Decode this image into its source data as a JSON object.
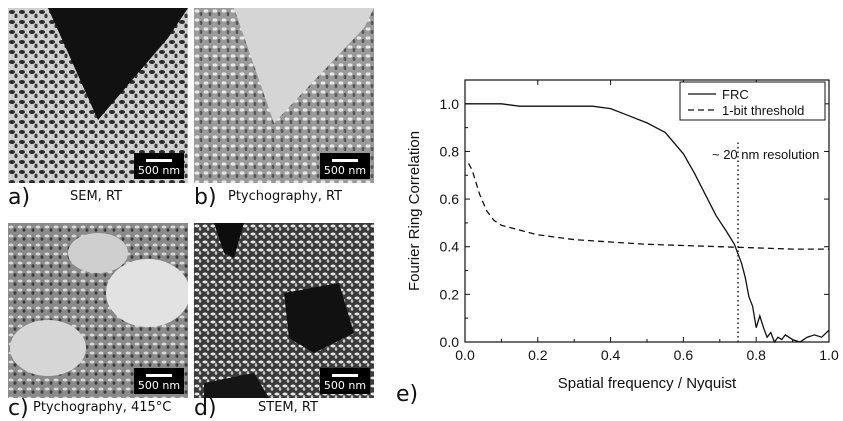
{
  "panels": [
    {
      "letter": "a)",
      "caption": "SEM, RT",
      "scale_bar": "500 nm"
    },
    {
      "letter": "b)",
      "caption": "Ptychography, RT",
      "scale_bar": "500 nm"
    },
    {
      "letter": "c)",
      "caption": "Ptychography, 415°C",
      "scale_bar": "500 nm"
    },
    {
      "letter": "d)",
      "caption": "STEM, RT",
      "scale_bar": "500 nm"
    }
  ],
  "chart_letter": "e)",
  "chart_data": {
    "type": "line",
    "xlabel": "Spatial frequency / Nyquist",
    "ylabel": "Fourier Ring Correlation",
    "xlim": [
      0.0,
      1.0
    ],
    "ylim": [
      0.0,
      1.1
    ],
    "xticks": [
      "0.0",
      "0.2",
      "0.4",
      "0.6",
      "0.8",
      "1.0"
    ],
    "yticks": [
      "0.0",
      "0.2",
      "0.4",
      "0.6",
      "0.8",
      "1.0"
    ],
    "legend_position": "top-right",
    "annotation": "~ 20 nm resolution",
    "annotation_x": 0.75,
    "series": [
      {
        "name": "FRC",
        "style": "solid",
        "x": [
          0.0,
          0.05,
          0.1,
          0.15,
          0.2,
          0.25,
          0.3,
          0.35,
          0.4,
          0.45,
          0.5,
          0.55,
          0.6,
          0.63,
          0.66,
          0.69,
          0.72,
          0.74,
          0.76,
          0.77,
          0.78,
          0.79,
          0.8,
          0.81,
          0.82,
          0.83,
          0.84,
          0.85,
          0.86,
          0.87,
          0.88,
          0.9,
          0.92,
          0.94,
          0.96,
          0.98,
          1.0
        ],
        "y": [
          1.0,
          1.0,
          1.0,
          0.99,
          0.99,
          0.99,
          0.99,
          0.99,
          0.98,
          0.95,
          0.92,
          0.88,
          0.79,
          0.71,
          0.62,
          0.53,
          0.46,
          0.41,
          0.33,
          0.27,
          0.19,
          0.15,
          0.06,
          0.11,
          0.06,
          0.02,
          0.04,
          0.0,
          0.02,
          0.01,
          0.03,
          0.01,
          0.0,
          0.02,
          0.03,
          0.02,
          0.05
        ]
      },
      {
        "name": "1-bit threshold",
        "style": "dashed",
        "x": [
          0.01,
          0.02,
          0.04,
          0.06,
          0.08,
          0.1,
          0.15,
          0.2,
          0.3,
          0.4,
          0.5,
          0.6,
          0.7,
          0.8,
          0.9,
          1.0
        ],
        "y": [
          0.75,
          0.72,
          0.62,
          0.55,
          0.51,
          0.49,
          0.47,
          0.45,
          0.43,
          0.42,
          0.41,
          0.405,
          0.4,
          0.395,
          0.39,
          0.39
        ]
      }
    ]
  }
}
